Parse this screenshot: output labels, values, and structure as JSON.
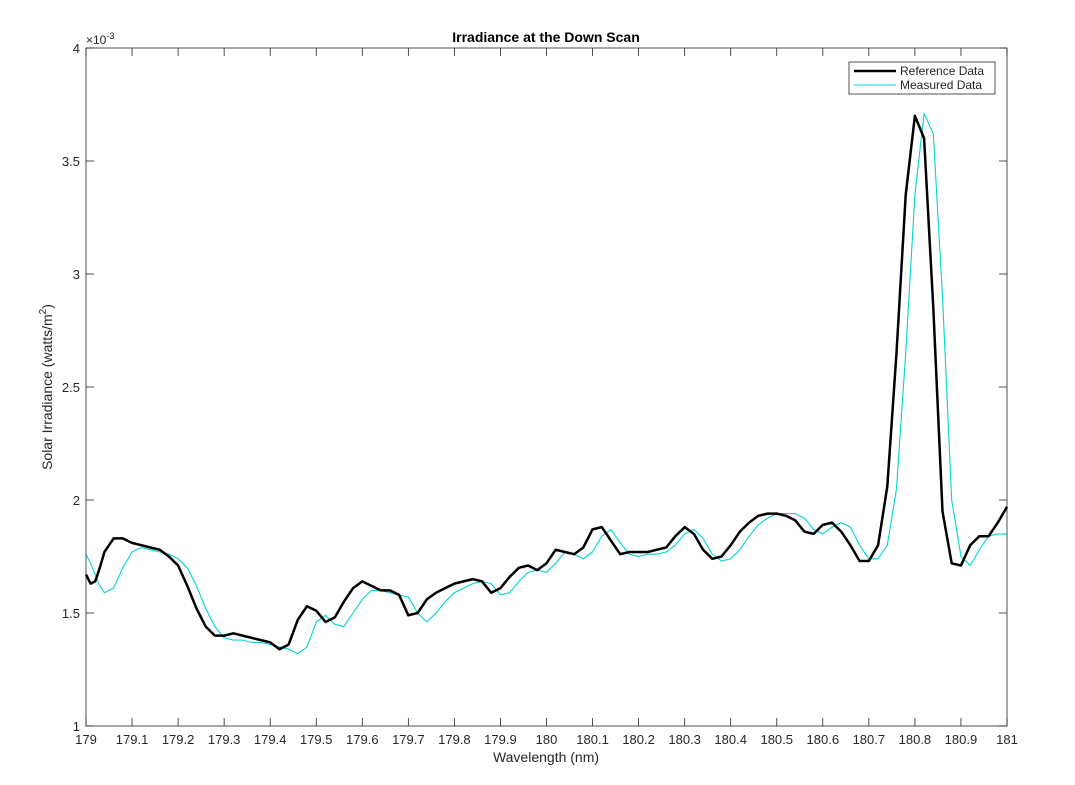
{
  "chart_data": {
    "type": "line",
    "title": "Irradiance at the Down Scan",
    "xlabel": "Wavelength (nm)",
    "ylabel_main": "Solar Irradiance (watts/m",
    "ylabel_sup": "2",
    "ylabel_close": ")",
    "xlim": [
      179,
      181
    ],
    "ylim": [
      1,
      4
    ],
    "exponent_base": "×10",
    "exponent_power": "-3",
    "xticks": [
      179,
      179.1,
      179.2,
      179.3,
      179.4,
      179.5,
      179.6,
      179.7,
      179.8,
      179.9,
      180,
      180.1,
      180.2,
      180.3,
      180.4,
      180.5,
      180.6,
      180.7,
      180.8,
      180.9,
      181
    ],
    "xtick_labels": [
      "179",
      "179.1",
      "179.2",
      "179.3",
      "179.4",
      "179.5",
      "179.6",
      "179.7",
      "179.8",
      "179.9",
      "180",
      "180.1",
      "180.2",
      "180.3",
      "180.4",
      "180.5",
      "180.6",
      "180.7",
      "180.8",
      "180.9",
      "181"
    ],
    "yticks": [
      1,
      1.5,
      2,
      2.5,
      3,
      3.5,
      4
    ],
    "ytick_labels": [
      "1",
      "1.5",
      "2",
      "2.5",
      "3",
      "3.5",
      "4"
    ],
    "legend_position": "top-right",
    "series": [
      {
        "name": "Reference Data",
        "color": "#000000",
        "width": "thick",
        "x": [
          179.0,
          179.01,
          179.02,
          179.03,
          179.04,
          179.06,
          179.08,
          179.1,
          179.12,
          179.14,
          179.16,
          179.18,
          179.2,
          179.22,
          179.24,
          179.26,
          179.28,
          179.3,
          179.32,
          179.34,
          179.36,
          179.38,
          179.4,
          179.42,
          179.44,
          179.46,
          179.48,
          179.5,
          179.52,
          179.54,
          179.56,
          179.58,
          179.6,
          179.62,
          179.64,
          179.66,
          179.68,
          179.7,
          179.72,
          179.74,
          179.76,
          179.78,
          179.8,
          179.82,
          179.84,
          179.86,
          179.88,
          179.9,
          179.92,
          179.94,
          179.96,
          179.98,
          180.0,
          180.02,
          180.04,
          180.06,
          180.08,
          180.1,
          180.12,
          180.14,
          180.16,
          180.18,
          180.2,
          180.22,
          180.24,
          180.26,
          180.28,
          180.3,
          180.32,
          180.34,
          180.36,
          180.38,
          180.4,
          180.42,
          180.44,
          180.46,
          180.48,
          180.5,
          180.52,
          180.54,
          180.56,
          180.58,
          180.6,
          180.62,
          180.64,
          180.66,
          180.68,
          180.7,
          180.72,
          180.74,
          180.76,
          180.78,
          180.8,
          180.82,
          180.84,
          180.86,
          180.88,
          180.9,
          180.92,
          180.94,
          180.96,
          180.98,
          181.0
        ],
        "y": [
          1.67,
          1.63,
          1.64,
          1.7,
          1.77,
          1.83,
          1.83,
          1.81,
          1.8,
          1.79,
          1.78,
          1.75,
          1.71,
          1.62,
          1.52,
          1.44,
          1.4,
          1.4,
          1.41,
          1.4,
          1.39,
          1.38,
          1.37,
          1.34,
          1.36,
          1.47,
          1.53,
          1.51,
          1.46,
          1.48,
          1.55,
          1.61,
          1.64,
          1.62,
          1.6,
          1.6,
          1.58,
          1.49,
          1.5,
          1.56,
          1.59,
          1.61,
          1.63,
          1.64,
          1.65,
          1.64,
          1.59,
          1.61,
          1.66,
          1.7,
          1.71,
          1.69,
          1.72,
          1.78,
          1.77,
          1.76,
          1.79,
          1.87,
          1.88,
          1.82,
          1.76,
          1.77,
          1.77,
          1.77,
          1.78,
          1.79,
          1.84,
          1.88,
          1.85,
          1.78,
          1.74,
          1.75,
          1.8,
          1.86,
          1.9,
          1.93,
          1.94,
          1.94,
          1.93,
          1.91,
          1.86,
          1.85,
          1.89,
          1.9,
          1.86,
          1.8,
          1.73,
          1.73,
          1.8,
          2.06,
          2.65,
          3.35,
          3.7,
          3.6,
          2.85,
          1.95,
          1.72,
          1.71,
          1.8,
          1.84,
          1.84,
          1.9,
          1.97
        ]
      },
      {
        "name": "Measured Data",
        "color": "#00d5d5",
        "width": "thin",
        "x": [
          179.0,
          179.01,
          179.02,
          179.03,
          179.04,
          179.06,
          179.08,
          179.1,
          179.12,
          179.14,
          179.16,
          179.18,
          179.2,
          179.22,
          179.24,
          179.26,
          179.28,
          179.3,
          179.32,
          179.34,
          179.36,
          179.38,
          179.4,
          179.42,
          179.44,
          179.46,
          179.48,
          179.5,
          179.52,
          179.54,
          179.56,
          179.58,
          179.6,
          179.62,
          179.64,
          179.66,
          179.68,
          179.7,
          179.72,
          179.74,
          179.76,
          179.78,
          179.8,
          179.82,
          179.84,
          179.86,
          179.88,
          179.9,
          179.92,
          179.94,
          179.96,
          179.98,
          180.0,
          180.02,
          180.04,
          180.06,
          180.08,
          180.1,
          180.12,
          180.14,
          180.16,
          180.18,
          180.2,
          180.22,
          180.24,
          180.26,
          180.28,
          180.3,
          180.32,
          180.34,
          180.36,
          180.38,
          180.4,
          180.42,
          180.44,
          180.46,
          180.48,
          180.5,
          180.52,
          180.54,
          180.56,
          180.58,
          180.6,
          180.62,
          180.64,
          180.66,
          180.68,
          180.7,
          180.72,
          180.74,
          180.76,
          180.78,
          180.8,
          180.82,
          180.84,
          180.86,
          180.88,
          180.9,
          180.92,
          180.94,
          180.96,
          180.98,
          181.0
        ],
        "y": [
          1.76,
          1.72,
          1.67,
          1.62,
          1.59,
          1.61,
          1.7,
          1.77,
          1.79,
          1.78,
          1.77,
          1.76,
          1.74,
          1.7,
          1.62,
          1.52,
          1.44,
          1.39,
          1.38,
          1.38,
          1.37,
          1.37,
          1.36,
          1.35,
          1.34,
          1.32,
          1.35,
          1.46,
          1.49,
          1.45,
          1.44,
          1.5,
          1.56,
          1.6,
          1.6,
          1.59,
          1.58,
          1.57,
          1.5,
          1.46,
          1.5,
          1.55,
          1.59,
          1.61,
          1.63,
          1.64,
          1.63,
          1.58,
          1.59,
          1.64,
          1.68,
          1.69,
          1.68,
          1.72,
          1.77,
          1.76,
          1.74,
          1.77,
          1.84,
          1.87,
          1.81,
          1.76,
          1.75,
          1.76,
          1.76,
          1.77,
          1.8,
          1.85,
          1.87,
          1.83,
          1.76,
          1.73,
          1.74,
          1.78,
          1.84,
          1.89,
          1.92,
          1.94,
          1.94,
          1.94,
          1.92,
          1.87,
          1.85,
          1.88,
          1.9,
          1.88,
          1.8,
          1.74,
          1.74,
          1.8,
          2.05,
          2.65,
          3.35,
          3.71,
          3.62,
          2.9,
          2.0,
          1.75,
          1.71,
          1.78,
          1.84,
          1.85,
          1.85
        ]
      }
    ]
  }
}
